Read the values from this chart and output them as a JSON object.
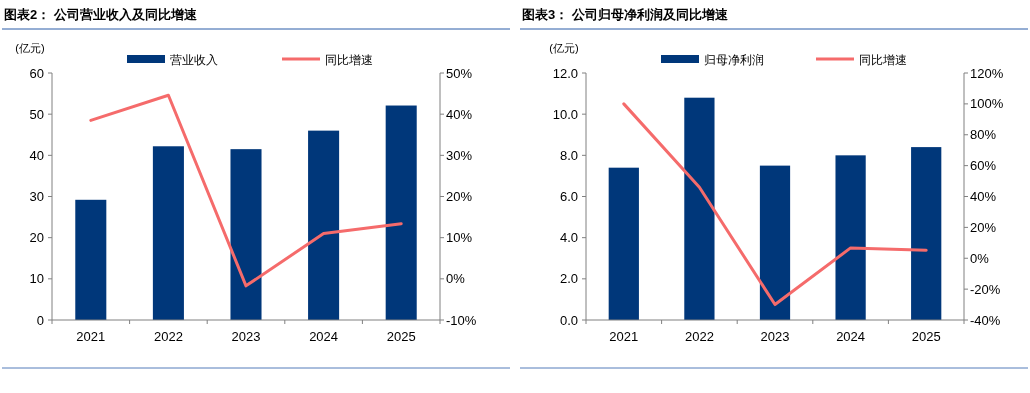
{
  "chart_data": [
    {
      "type": "bar",
      "title": "图表2：  公司营业收入及同比增速",
      "ylabel": "(亿元)",
      "categories": [
        "2021",
        "2022",
        "2023",
        "2024",
        "2025"
      ],
      "series": [
        {
          "name": "营业收入",
          "color": "#00377a",
          "values": [
            29.2,
            42.2,
            41.5,
            46.0,
            52.1
          ]
        },
        {
          "name": "同比增速",
          "type": "line",
          "axis": "y2",
          "color": "#f56b6b",
          "values": [
            38.5,
            44.6,
            -1.7,
            11.0,
            13.4
          ]
        }
      ],
      "ylim": [
        0,
        60
      ],
      "yticks": [
        0,
        10,
        20,
        30,
        40,
        50,
        60
      ],
      "y2lim": [
        -10,
        50
      ],
      "y2ticks": [
        {
          "value": -10,
          "label": "-10%"
        },
        {
          "value": 0,
          "label": "0%"
        },
        {
          "value": 10,
          "label": "10%"
        },
        {
          "value": 20,
          "label": "20%"
        },
        {
          "value": 30,
          "label": "30%"
        },
        {
          "value": 40,
          "label": "40%"
        },
        {
          "value": 50,
          "label": "50%"
        }
      ],
      "legend": "top",
      "grid": false
    },
    {
      "type": "bar",
      "title": "图表3：  公司归母净利润及同比增速",
      "ylabel": "(亿元)",
      "categories": [
        "2021",
        "2022",
        "2023",
        "2024",
        "2025"
      ],
      "series": [
        {
          "name": "归母净利润",
          "color": "#00377a",
          "values": [
            7.4,
            10.8,
            7.5,
            8.0,
            8.4
          ]
        },
        {
          "name": "同比增速",
          "type": "line",
          "axis": "y2",
          "color": "#f56b6b",
          "values": [
            100,
            46,
            -30,
            6.7,
            5.2
          ]
        }
      ],
      "ylim": [
        0,
        12
      ],
      "yticks": [
        {
          "value": 0,
          "label": "0.0"
        },
        {
          "value": 2,
          "label": "2.0"
        },
        {
          "value": 4,
          "label": "4.0"
        },
        {
          "value": 6,
          "label": "6.0"
        },
        {
          "value": 8,
          "label": "8.0"
        },
        {
          "value": 10,
          "label": "10.0"
        },
        {
          "value": 12,
          "label": "12.0"
        }
      ],
      "y2lim": [
        -40,
        120
      ],
      "y2ticks": [
        {
          "value": -40,
          "label": "-40%"
        },
        {
          "value": -20,
          "label": "-20%"
        },
        {
          "value": 0,
          "label": "0%"
        },
        {
          "value": 20,
          "label": "20%"
        },
        {
          "value": 40,
          "label": "40%"
        },
        {
          "value": 60,
          "label": "60%"
        },
        {
          "value": 80,
          "label": "80%"
        },
        {
          "value": 100,
          "label": "100%"
        },
        {
          "value": 120,
          "label": "120%"
        }
      ],
      "legend": "top",
      "grid": false
    }
  ]
}
